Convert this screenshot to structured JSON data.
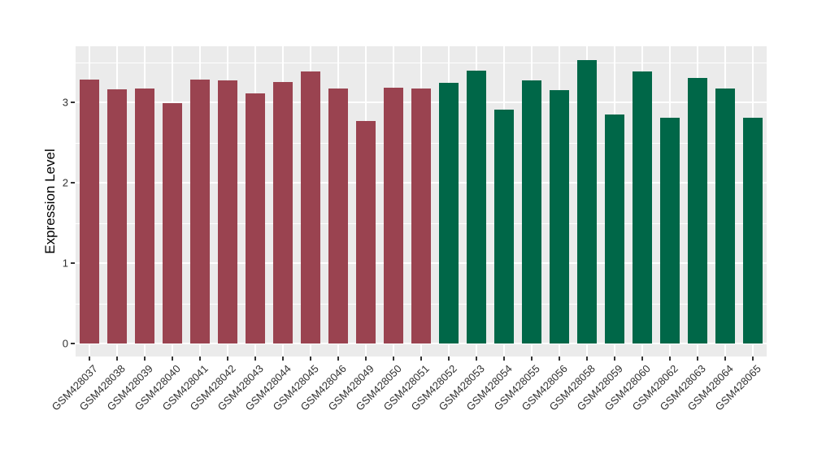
{
  "figure": {
    "background_color": "#FFFFFF",
    "panel_background_color": "#EBEBEB",
    "grid_color": "#FFFFFF",
    "axis_text_color": "#303030",
    "axis_title_color": "#000000"
  },
  "chart_data": {
    "type": "bar",
    "title": "",
    "xlabel": "",
    "ylabel": "Expression Level",
    "ylim": [
      0,
      3.73
    ],
    "yticks": [
      0,
      1,
      2,
      3
    ],
    "yticks_minor": [
      0.5,
      1.5,
      2.5,
      3.5
    ],
    "grid": "on",
    "legend_position": "none",
    "categories": [
      "GSM428037",
      "GSM428038",
      "GSM428039",
      "GSM428040",
      "GSM428041",
      "GSM428042",
      "GSM428043",
      "GSM428044",
      "GSM428045",
      "GSM428046",
      "GSM428049",
      "GSM428050",
      "GSM428051",
      "GSM428052",
      "GSM428053",
      "GSM428054",
      "GSM428055",
      "GSM428056",
      "GSM428058",
      "GSM428059",
      "GSM428060",
      "GSM428062",
      "GSM428063",
      "GSM428064",
      "GSM428065"
    ],
    "values": [
      3.28,
      3.16,
      3.17,
      2.99,
      3.28,
      3.27,
      3.11,
      3.25,
      3.38,
      3.17,
      2.77,
      3.18,
      3.17,
      3.24,
      3.39,
      2.91,
      3.27,
      3.15,
      3.53,
      2.85,
      3.38,
      2.81,
      3.3,
      3.17,
      2.81
    ],
    "groups": [
      "group1",
      "group1",
      "group1",
      "group1",
      "group1",
      "group1",
      "group1",
      "group1",
      "group1",
      "group1",
      "group1",
      "group1",
      "group1",
      "group2",
      "group2",
      "group2",
      "group2",
      "group2",
      "group2",
      "group2",
      "group2",
      "group2",
      "group2",
      "group2",
      "group2"
    ],
    "group_colors": {
      "group1": "#9A4350",
      "group2": "#006748"
    }
  }
}
